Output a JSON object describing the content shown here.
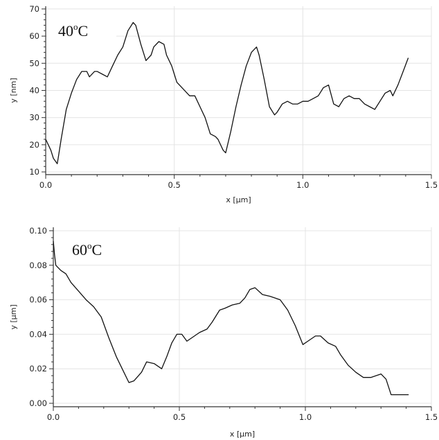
{
  "chart_data": [
    {
      "type": "line",
      "annotation": "40",
      "annotation_sup": "o",
      "annotation_unit": "C",
      "xlabel": "x [µm]",
      "ylabel": "y [nm]",
      "xlim": [
        0,
        1.5
      ],
      "ylim": [
        9,
        71
      ],
      "xticks": [
        0,
        0.5,
        1.0,
        1.5
      ],
      "xtick_labels": [
        "0.0",
        "0.5",
        "1.0",
        "1.5"
      ],
      "yticks": [
        10,
        20,
        30,
        40,
        50,
        60,
        70
      ],
      "ytick_labels": [
        "10",
        "20",
        "30",
        "40",
        "50",
        "60",
        "70"
      ],
      "grid": true,
      "series": [
        {
          "x": [
            0,
            0.01,
            0.02,
            0.03,
            0.045,
            0.05,
            0.06,
            0.08,
            0.1,
            0.12,
            0.14,
            0.16,
            0.17,
            0.19,
            0.2,
            0.22,
            0.24,
            0.26,
            0.28,
            0.3,
            0.32,
            0.34,
            0.35,
            0.37,
            0.39,
            0.41,
            0.42,
            0.44,
            0.46,
            0.47,
            0.49,
            0.5,
            0.51,
            0.53,
            0.56,
            0.58,
            0.6,
            0.62,
            0.64,
            0.66,
            0.67,
            0.69,
            0.7,
            0.72,
            0.74,
            0.76,
            0.78,
            0.8,
            0.82,
            0.83,
            0.85,
            0.87,
            0.89,
            0.9,
            0.92,
            0.94,
            0.96,
            0.98,
            1.0,
            1.02,
            1.04,
            1.06,
            1.08,
            1.1,
            1.12,
            1.14,
            1.16,
            1.18,
            1.2,
            1.22,
            1.24,
            1.26,
            1.28,
            1.3,
            1.32,
            1.34,
            1.35,
            1.37,
            1.39,
            1.41
          ],
          "y": [
            22,
            20,
            18,
            15,
            13,
            16,
            22,
            33,
            39,
            44,
            47,
            47,
            45,
            47,
            47,
            46,
            45,
            49,
            53,
            56,
            62,
            65,
            64,
            57,
            51,
            53,
            56,
            58,
            57,
            53,
            49,
            46,
            43,
            41,
            38,
            38,
            34,
            30,
            24,
            23,
            22,
            18,
            17,
            25,
            34,
            42,
            49,
            54,
            56,
            53,
            44,
            34,
            31,
            32,
            35,
            36,
            35,
            35,
            36,
            36,
            37,
            38,
            41,
            42,
            35,
            34,
            37,
            38,
            37,
            37,
            35,
            34,
            33,
            36,
            39,
            40,
            38,
            42,
            47,
            52
          ]
        }
      ]
    },
    {
      "type": "line",
      "annotation": "60",
      "annotation_sup": "o",
      "annotation_unit": "C",
      "xlabel": "x [µm]",
      "ylabel": "y [µm]",
      "xlim": [
        0,
        1.5
      ],
      "ylim": [
        -0.002,
        0.102
      ],
      "xticks": [
        0,
        0.5,
        1.0,
        1.5
      ],
      "xtick_labels": [
        "0.0",
        "0.5",
        "1.0",
        "1.5"
      ],
      "yticks": [
        0,
        0.02,
        0.04,
        0.06,
        0.08,
        0.1
      ],
      "ytick_labels": [
        "0.00",
        "0.02",
        "0.04",
        "0.06",
        "0.08",
        "0.10"
      ],
      "grid": true,
      "series": [
        {
          "x": [
            0,
            0.005,
            0.01,
            0.03,
            0.05,
            0.07,
            0.1,
            0.13,
            0.16,
            0.19,
            0.22,
            0.25,
            0.28,
            0.3,
            0.32,
            0.35,
            0.37,
            0.4,
            0.43,
            0.45,
            0.47,
            0.49,
            0.51,
            0.53,
            0.55,
            0.58,
            0.61,
            0.63,
            0.66,
            0.68,
            0.71,
            0.74,
            0.76,
            0.78,
            0.8,
            0.83,
            0.86,
            0.9,
            0.93,
            0.96,
            0.99,
            1.01,
            1.04,
            1.06,
            1.09,
            1.12,
            1.14,
            1.17,
            1.2,
            1.23,
            1.26,
            1.28,
            1.3,
            1.32,
            1.34,
            1.36,
            1.38,
            1.41
          ],
          "y": [
            0.094,
            0.086,
            0.08,
            0.077,
            0.075,
            0.07,
            0.065,
            0.06,
            0.056,
            0.05,
            0.038,
            0.027,
            0.018,
            0.012,
            0.013,
            0.018,
            0.024,
            0.023,
            0.02,
            0.027,
            0.035,
            0.04,
            0.04,
            0.036,
            0.038,
            0.041,
            0.043,
            0.047,
            0.054,
            0.055,
            0.057,
            0.058,
            0.061,
            0.066,
            0.067,
            0.063,
            0.062,
            0.06,
            0.054,
            0.045,
            0.034,
            0.036,
            0.039,
            0.039,
            0.035,
            0.033,
            0.028,
            0.022,
            0.018,
            0.015,
            0.015,
            0.016,
            0.017,
            0.014,
            0.005,
            0.005,
            0.005,
            0.005
          ]
        }
      ]
    }
  ]
}
